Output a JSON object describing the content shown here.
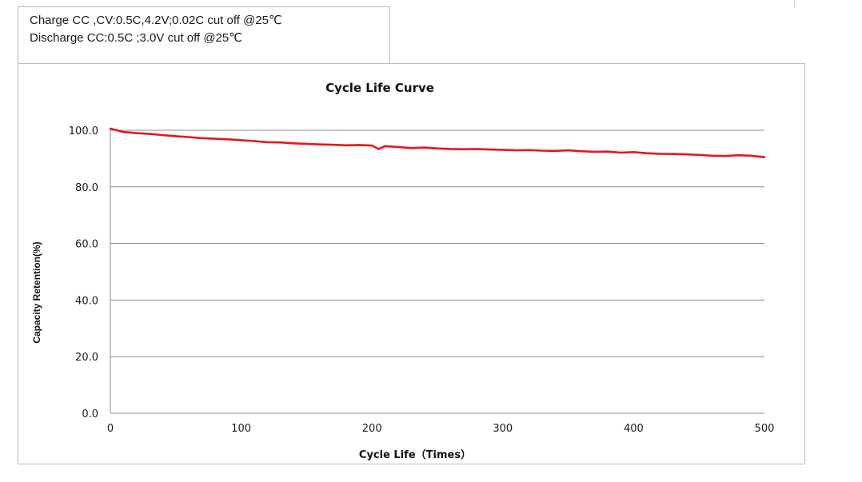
{
  "conditions": {
    "charge": "Charge CC ,CV:0.5C,4.2V;0.02C cut off @25℃",
    "discharge": "Discharge CC:0.5C ;3.0V cut off @25℃"
  },
  "chart_data": {
    "type": "line",
    "title": "Cycle Life Curve",
    "xlabel": "Cycle Life（Times）",
    "ylabel": "Capacity Retention(%)",
    "xlim": [
      0,
      500
    ],
    "ylim": [
      0,
      100
    ],
    "x_ticks": [
      "0",
      "100",
      "200",
      "300",
      "400",
      "500"
    ],
    "y_ticks": [
      "0.0",
      "20.0",
      "40.0",
      "60.0",
      "80.0",
      "100.0"
    ],
    "grid": true,
    "line_color": "#e8161b",
    "series": [
      {
        "x": [
          0,
          10,
          20,
          30,
          40,
          50,
          60,
          70,
          80,
          90,
          100,
          110,
          120,
          130,
          140,
          150,
          160,
          170,
          180,
          190,
          200,
          205,
          210,
          220,
          230,
          240,
          250,
          260,
          270,
          280,
          290,
          300,
          310,
          320,
          330,
          340,
          350,
          360,
          370,
          380,
          390,
          400,
          410,
          420,
          430,
          440,
          450,
          460,
          470,
          480,
          490,
          500
        ],
        "y": [
          100.6,
          99.4,
          99.0,
          98.7,
          98.3,
          97.9,
          97.6,
          97.2,
          97.0,
          96.8,
          96.5,
          96.2,
          95.8,
          95.7,
          95.4,
          95.2,
          95.0,
          94.9,
          94.7,
          94.8,
          94.6,
          93.4,
          94.4,
          94.1,
          93.7,
          93.9,
          93.6,
          93.4,
          93.3,
          93.4,
          93.2,
          93.1,
          92.9,
          93.0,
          92.8,
          92.7,
          92.9,
          92.6,
          92.4,
          92.5,
          92.1,
          92.3,
          91.9,
          91.7,
          91.6,
          91.5,
          91.3,
          91.0,
          90.9,
          91.2,
          91.0,
          90.5
        ]
      }
    ]
  }
}
